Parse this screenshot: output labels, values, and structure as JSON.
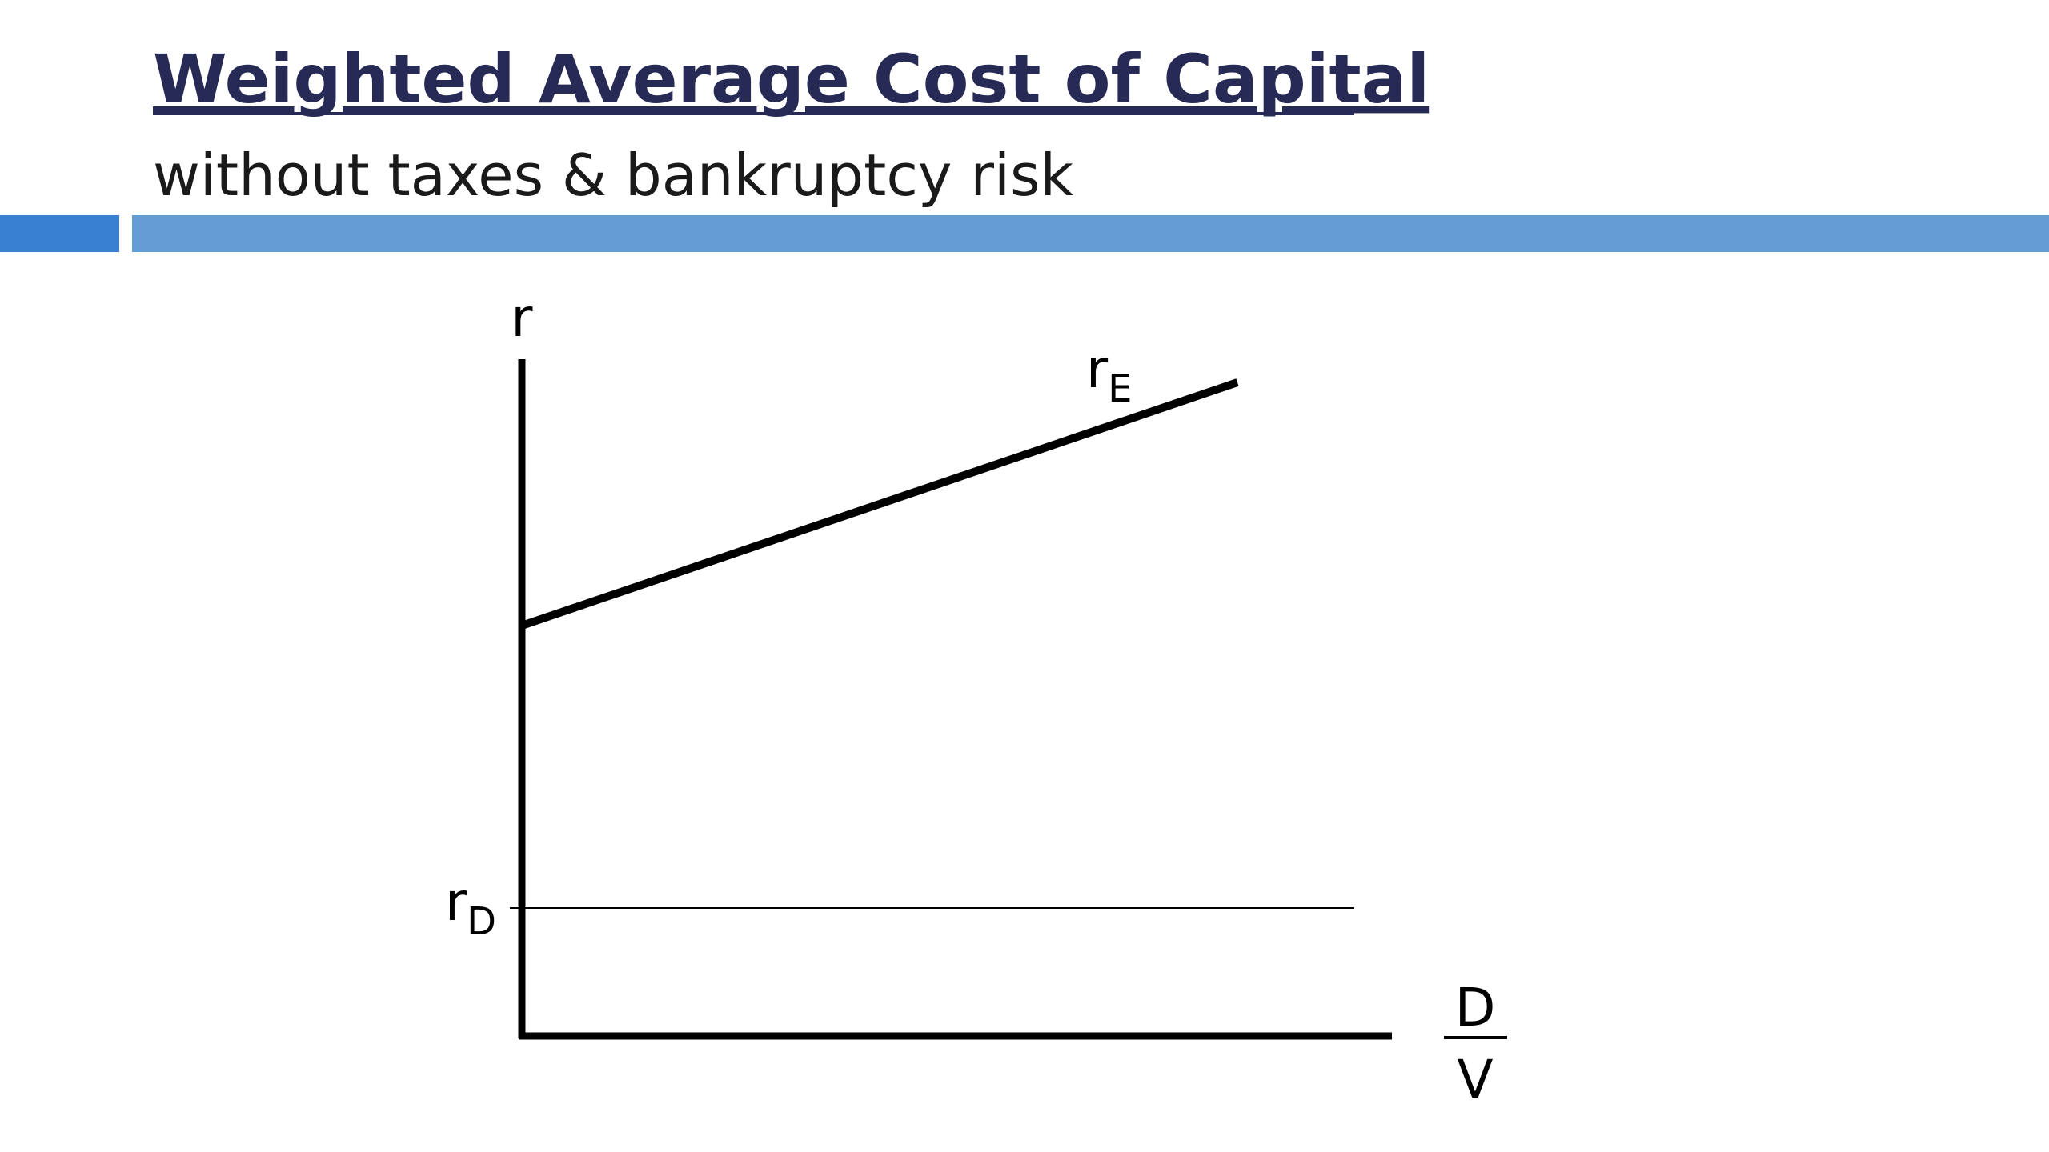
{
  "header": {
    "title": "Weighted Average Cost of Capital",
    "subtitle": "without taxes & bankruptcy risk"
  },
  "diagram": {
    "y_axis_label": "r",
    "x_axis_label": {
      "numerator": "D",
      "denominator": "V"
    },
    "lines": [
      {
        "label": {
          "base": "r",
          "subscript": "E"
        }
      },
      {
        "label": {
          "base": "r",
          "subscript": "D"
        }
      }
    ]
  }
}
